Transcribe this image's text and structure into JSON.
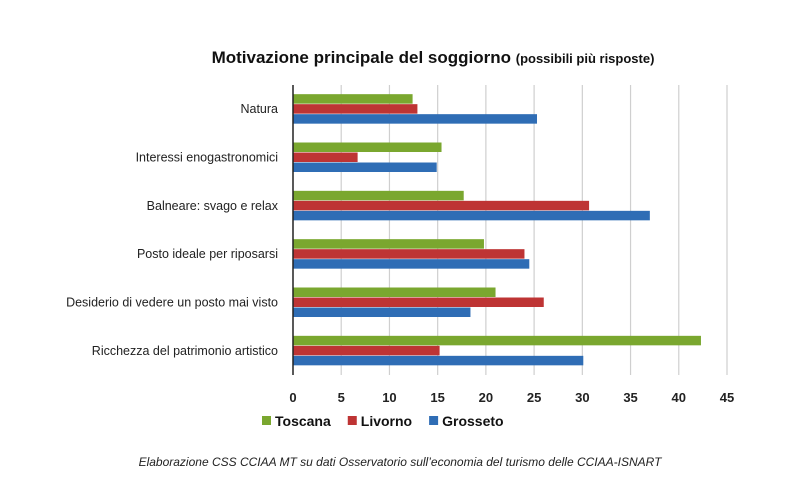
{
  "chart_data": {
    "type": "bar",
    "orientation": "horizontal",
    "title": "Motivazione principale del soggiorno",
    "subtitle": "(possibili più risposte)",
    "categories": [
      "Natura",
      "Interessi enogastronomici",
      "Balneare: svago e relax",
      "Posto ideale per riposarsi",
      "Desiderio di vedere un posto mai visto",
      "Ricchezza del patrimonio artistico"
    ],
    "series": [
      {
        "name": "Toscana",
        "color": "#7aa72f",
        "values": [
          12.4,
          15.4,
          17.7,
          19.8,
          21.0,
          42.3
        ]
      },
      {
        "name": "Livorno",
        "color": "#be3434",
        "values": [
          12.9,
          6.7,
          30.7,
          24.0,
          26.0,
          15.2
        ]
      },
      {
        "name": "Grosseto",
        "color": "#2f6db5",
        "values": [
          25.3,
          14.9,
          37.0,
          24.5,
          18.4,
          30.1
        ]
      }
    ],
    "xlim": [
      0,
      45
    ],
    "xticks": [
      "0",
      "5",
      "10",
      "15",
      "20",
      "25",
      "30",
      "35",
      "40",
      "45"
    ],
    "grid": true,
    "legend_position": "bottom",
    "footnote": "Elaborazione CSS CCIAA MT su dati Osservatorio sull’economia del turismo delle CCIAA-ISNART"
  }
}
